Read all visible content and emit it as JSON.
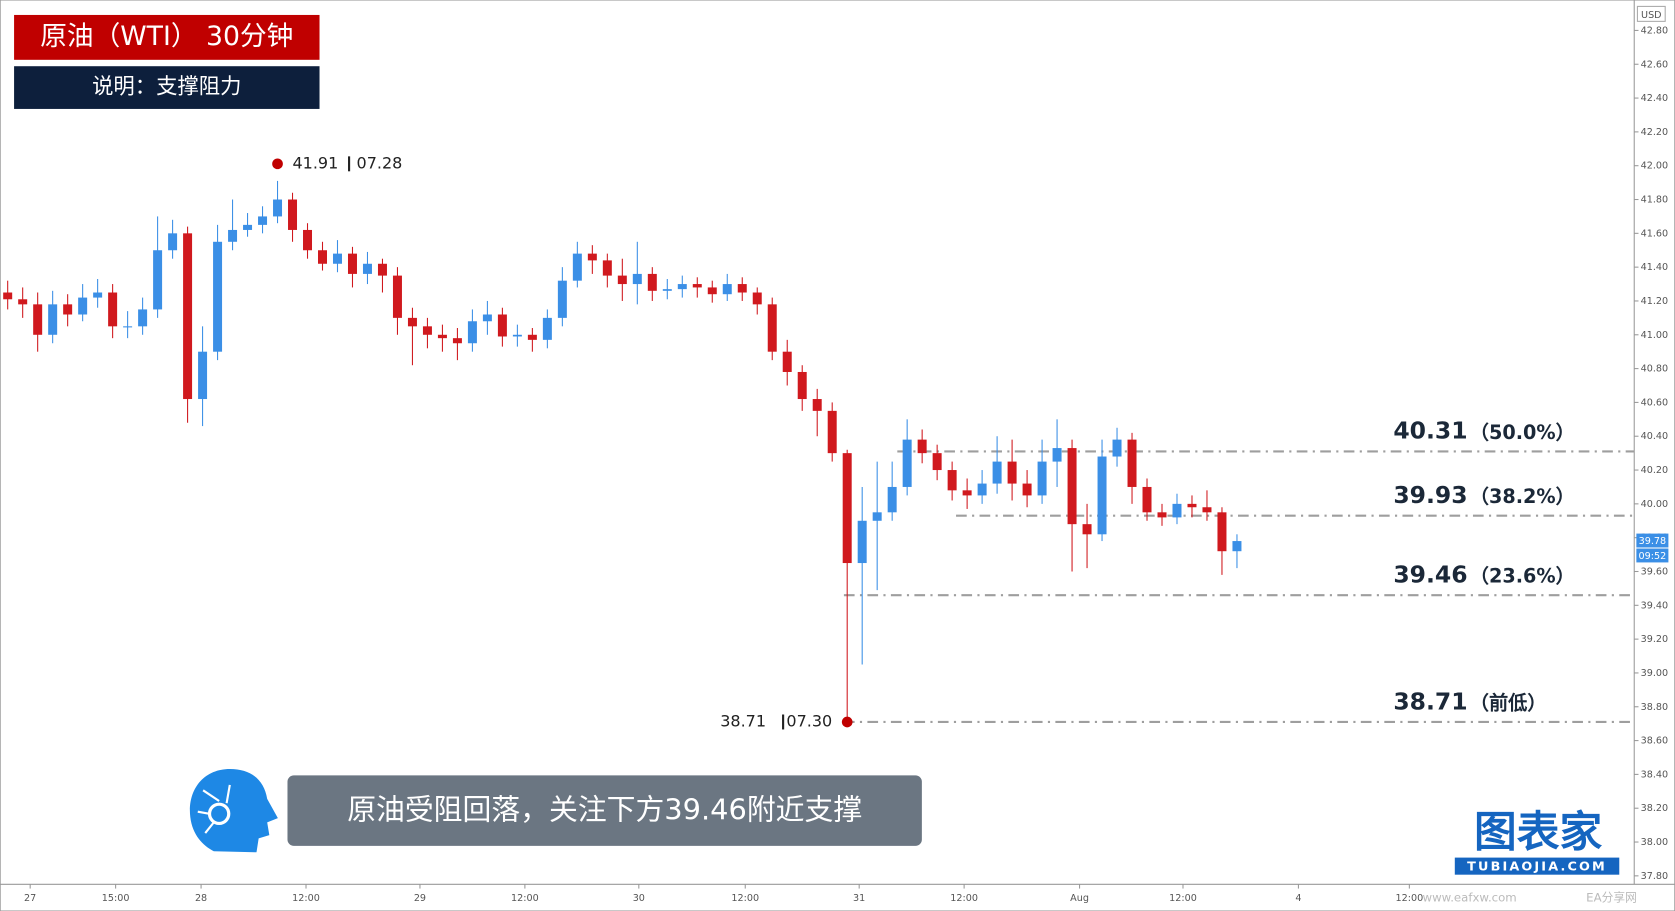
{
  "header": {
    "title": "原油（WTI） 30分钟",
    "subtitle": "说明：支撑阻力"
  },
  "chart_data": {
    "type": "candlestick",
    "open": [
      41.25,
      41.21,
      41.18,
      41.0,
      41.18,
      41.12,
      41.22,
      41.25,
      41.05,
      41.05,
      41.15,
      41.5,
      41.6,
      40.62,
      40.9,
      41.55,
      41.62,
      41.65,
      41.7,
      41.8,
      41.62,
      41.5,
      41.42,
      41.48,
      41.36,
      41.42,
      41.35,
      41.1,
      41.05,
      41.0,
      40.98,
      40.95,
      41.08,
      41.12,
      40.99,
      41.0,
      40.97,
      41.1,
      41.32,
      41.48,
      41.44,
      41.35,
      41.3,
      41.36,
      41.26,
      41.27,
      41.3,
      41.28,
      41.24,
      41.3,
      41.25,
      41.18,
      40.9,
      40.78,
      40.62,
      40.55,
      40.3,
      39.65,
      39.9,
      39.95,
      40.1,
      40.38,
      40.3,
      40.2,
      40.08,
      40.05,
      40.12,
      40.25,
      40.12,
      40.05,
      40.25,
      40.33,
      39.88,
      39.82,
      40.28,
      40.38,
      40.1,
      39.95,
      39.92,
      40.0,
      39.98,
      39.95,
      39.72
    ],
    "high": [
      41.32,
      41.28,
      41.25,
      41.26,
      41.24,
      41.3,
      41.33,
      41.3,
      41.14,
      41.22,
      41.7,
      41.68,
      41.64,
      41.05,
      41.65,
      41.8,
      41.72,
      41.76,
      41.91,
      41.84,
      41.66,
      41.55,
      41.56,
      41.52,
      41.49,
      41.45,
      41.4,
      41.16,
      41.1,
      41.06,
      41.04,
      41.15,
      41.2,
      41.16,
      41.06,
      41.04,
      41.15,
      41.4,
      41.55,
      41.53,
      41.48,
      41.45,
      41.55,
      41.4,
      41.33,
      41.35,
      41.34,
      41.32,
      41.36,
      41.34,
      41.28,
      41.22,
      40.97,
      40.82,
      40.68,
      40.6,
      40.32,
      40.1,
      40.25,
      40.25,
      40.5,
      40.44,
      40.35,
      40.25,
      40.15,
      40.2,
      40.4,
      40.38,
      40.2,
      40.38,
      40.5,
      40.38,
      40.0,
      40.38,
      40.45,
      40.42,
      40.15,
      40.0,
      40.06,
      40.05,
      40.08,
      39.98,
      39.82
    ],
    "low": [
      41.15,
      41.1,
      40.9,
      40.95,
      41.05,
      41.08,
      41.16,
      40.98,
      40.98,
      41.0,
      41.1,
      41.45,
      40.48,
      40.46,
      40.85,
      41.5,
      41.58,
      41.6,
      41.66,
      41.55,
      41.45,
      41.38,
      41.37,
      41.28,
      41.3,
      41.25,
      41.0,
      40.82,
      40.92,
      40.9,
      40.85,
      40.9,
      41.0,
      40.93,
      40.93,
      40.9,
      40.92,
      41.05,
      41.28,
      41.36,
      41.28,
      41.2,
      41.18,
      41.2,
      41.21,
      41.22,
      41.22,
      41.19,
      41.2,
      41.2,
      41.12,
      40.85,
      40.7,
      40.55,
      40.4,
      40.25,
      38.71,
      39.05,
      39.49,
      39.9,
      40.05,
      40.24,
      40.14,
      40.02,
      39.97,
      40.0,
      40.06,
      40.02,
      39.98,
      40.0,
      40.1,
      39.6,
      39.62,
      39.78,
      40.22,
      40.0,
      39.9,
      39.87,
      39.88,
      39.92,
      39.9,
      39.58,
      39.62
    ],
    "close": [
      41.21,
      41.18,
      41.0,
      41.18,
      41.12,
      41.22,
      41.25,
      41.05,
      41.05,
      41.15,
      41.5,
      41.6,
      40.62,
      40.9,
      41.55,
      41.62,
      41.65,
      41.7,
      41.8,
      41.62,
      41.5,
      41.42,
      41.48,
      41.36,
      41.42,
      41.35,
      41.1,
      41.05,
      41.0,
      40.98,
      40.95,
      41.08,
      41.12,
      40.99,
      41.0,
      40.97,
      41.1,
      41.32,
      41.48,
      41.44,
      41.35,
      41.3,
      41.36,
      41.26,
      41.27,
      41.3,
      41.28,
      41.24,
      41.3,
      41.25,
      41.18,
      40.9,
      40.78,
      40.62,
      40.55,
      40.3,
      39.65,
      39.9,
      39.95,
      40.1,
      40.38,
      40.3,
      40.2,
      40.08,
      40.05,
      40.12,
      40.25,
      40.12,
      40.05,
      40.25,
      40.33,
      39.88,
      39.82,
      40.28,
      40.38,
      40.1,
      39.95,
      39.92,
      40.0,
      39.98,
      39.95,
      39.72,
      39.78
    ],
    "up_color": "#3b8fe6",
    "down_color": "#d0191e",
    "xlim": [
      0,
      109
    ],
    "xticks": [
      {
        "value": 2.0,
        "label": "27"
      },
      {
        "value": 7.7,
        "label": "15:00"
      },
      {
        "value": 13.4,
        "label": "28"
      },
      {
        "value": 20.4,
        "label": "12:00"
      },
      {
        "value": 28.0,
        "label": "29"
      },
      {
        "value": 35.0,
        "label": "12:00"
      },
      {
        "value": 42.6,
        "label": "30"
      },
      {
        "value": 49.7,
        "label": "12:00"
      },
      {
        "value": 57.3,
        "label": "31"
      },
      {
        "value": 64.3,
        "label": "12:00"
      },
      {
        "value": 72.0,
        "label": "Aug"
      },
      {
        "value": 78.9,
        "label": "12:00"
      },
      {
        "value": 86.6,
        "label": "4"
      },
      {
        "value": 94.0,
        "label": "12:00"
      }
    ],
    "ylim": [
      37.75,
      42.98
    ],
    "yticks": [
      {
        "value": 37.8,
        "label": "37.80"
      },
      {
        "value": 38.0,
        "label": "38.00"
      },
      {
        "value": 38.2,
        "label": "38.20"
      },
      {
        "value": 38.4,
        "label": "38.40"
      },
      {
        "value": 38.6,
        "label": "38.60"
      },
      {
        "value": 38.8,
        "label": "38.80"
      },
      {
        "value": 39.0,
        "label": "39.00"
      },
      {
        "value": 39.2,
        "label": "39.20"
      },
      {
        "value": 39.4,
        "label": "39.40"
      },
      {
        "value": 39.6,
        "label": "39.60"
      },
      {
        "value": 39.8,
        "label": "39.80"
      },
      {
        "value": 40.0,
        "label": "40.00"
      },
      {
        "value": 40.2,
        "label": "40.20"
      },
      {
        "value": 40.4,
        "label": "40.40"
      },
      {
        "value": 40.6,
        "label": "40.60"
      },
      {
        "value": 40.8,
        "label": "40.80"
      },
      {
        "value": 41.0,
        "label": "41.00"
      },
      {
        "value": 41.2,
        "label": "41.20"
      },
      {
        "value": 41.4,
        "label": "41.40"
      },
      {
        "value": 41.6,
        "label": "41.60"
      },
      {
        "value": 41.8,
        "label": "41.80"
      },
      {
        "value": 42.0,
        "label": "42.00"
      },
      {
        "value": 42.2,
        "label": "42.20"
      },
      {
        "value": 42.4,
        "label": "42.40"
      },
      {
        "value": 42.6,
        "label": "42.60"
      },
      {
        "value": 42.8,
        "label": "42.80"
      }
    ],
    "y_unit": "USD",
    "levels": [
      {
        "value": 40.31,
        "note": "（50.0%）"
      },
      {
        "value": 39.93,
        "note": "（38.2%）"
      },
      {
        "value": 39.46,
        "note": "（23.6%）"
      },
      {
        "value": 38.71,
        "note": "（前低）"
      }
    ],
    "extremes": {
      "high_date": "07.28",
      "low_date": "07.30",
      "color": "#c00000"
    },
    "countdown": "09:52"
  },
  "annotation": "原油受阻回落，关注下方39.46附近支撑",
  "logo": {
    "name": "图表家",
    "site": "TUBIAOJIA.COM"
  },
  "watermark": {
    "site": "www.eafxw.com",
    "name": "EA分享网"
  }
}
